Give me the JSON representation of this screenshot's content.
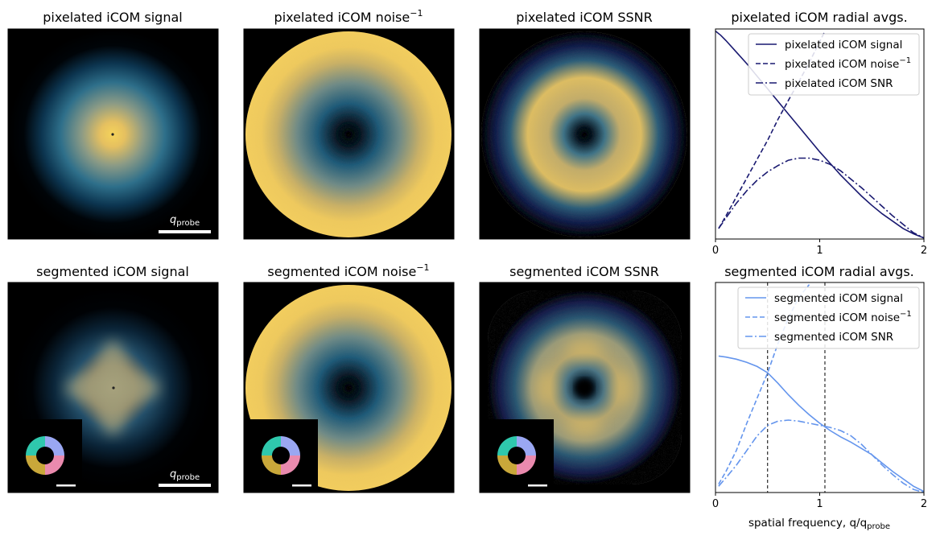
{
  "panels": {
    "row1": [
      {
        "title": "pixelated iCOM signal"
      },
      {
        "title": "pixelated iCOM noise",
        "title_sup": "−1"
      },
      {
        "title": "pixelated iCOM SSNR"
      }
    ],
    "row2": [
      {
        "title": "segmented iCOM signal"
      },
      {
        "title": "segmented iCOM noise",
        "title_sup": "−1"
      },
      {
        "title": "segmented iCOM SSNR"
      }
    ]
  },
  "scalebar": {
    "symbol": "q",
    "subscript": "probe"
  },
  "colors": {
    "pixelated": "#191970",
    "segmented": "#6495ed",
    "detector_segments": [
      "#9aa7f2",
      "#2fc8ad",
      "#c9a83a",
      "#ea8aae"
    ]
  },
  "chart_data": [
    {
      "type": "line",
      "title": "pixelated iCOM radial avgs.",
      "xlim": [
        0,
        2
      ],
      "ylim": [
        0,
        1
      ],
      "xticks": [
        "0",
        "1",
        "2"
      ],
      "grid": false,
      "legend_placement": "top-right",
      "xlabel": "",
      "series": [
        {
          "name": "pixelated iCOM signal",
          "style": "solid",
          "x": [
            0,
            0.05,
            0.1,
            0.2,
            0.3,
            0.4,
            0.5,
            0.6,
            0.7,
            0.8,
            0.9,
            1.0,
            1.1,
            1.2,
            1.3,
            1.4,
            1.5,
            1.6,
            1.7,
            1.8,
            1.9,
            2.0
          ],
          "y": [
            0.99,
            0.97,
            0.945,
            0.89,
            0.835,
            0.775,
            0.715,
            0.655,
            0.595,
            0.535,
            0.475,
            0.415,
            0.36,
            0.305,
            0.255,
            0.205,
            0.16,
            0.12,
            0.085,
            0.05,
            0.025,
            0.005
          ]
        },
        {
          "name": "pixelated iCOM noise",
          "name_sup": "−1",
          "style": "dashed",
          "x": [
            0.03,
            0.1,
            0.2,
            0.3,
            0.4,
            0.5,
            0.6,
            0.7,
            0.8,
            0.9,
            1.0,
            1.05
          ],
          "y": [
            0.05,
            0.11,
            0.2,
            0.29,
            0.38,
            0.47,
            0.57,
            0.66,
            0.75,
            0.84,
            0.94,
            0.99
          ]
        },
        {
          "name": "pixelated iCOM SNR",
          "style": "dashdot",
          "x": [
            0.03,
            0.1,
            0.2,
            0.3,
            0.4,
            0.5,
            0.6,
            0.7,
            0.8,
            0.9,
            1.0,
            1.1,
            1.2,
            1.3,
            1.4,
            1.5,
            1.6,
            1.7,
            1.8,
            1.9,
            2.0
          ],
          "y": [
            0.05,
            0.1,
            0.17,
            0.23,
            0.28,
            0.32,
            0.35,
            0.375,
            0.385,
            0.385,
            0.375,
            0.355,
            0.325,
            0.285,
            0.245,
            0.2,
            0.155,
            0.11,
            0.07,
            0.03,
            0.005
          ]
        }
      ]
    },
    {
      "type": "line",
      "title": "segmented iCOM radial avgs.",
      "xlim": [
        0,
        2
      ],
      "ylim": [
        0,
        1
      ],
      "xticks": [
        "0",
        "1",
        "2"
      ],
      "grid": false,
      "legend_placement": "top-right",
      "xlabel": "spatial frequency, q/q",
      "xlabel_sub": "probe",
      "vlines": [
        0.5,
        1.05
      ],
      "series": [
        {
          "name": "segmented iCOM signal",
          "style": "solid",
          "x": [
            0.03,
            0.1,
            0.2,
            0.3,
            0.4,
            0.5,
            0.6,
            0.7,
            0.8,
            0.9,
            1.0,
            1.1,
            1.2,
            1.3,
            1.4,
            1.5,
            1.6,
            1.7,
            1.8,
            1.9,
            2.0
          ],
          "y": [
            0.65,
            0.645,
            0.635,
            0.62,
            0.6,
            0.57,
            0.52,
            0.465,
            0.415,
            0.37,
            0.33,
            0.295,
            0.265,
            0.24,
            0.21,
            0.18,
            0.14,
            0.1,
            0.065,
            0.03,
            0.005
          ]
        },
        {
          "name": "segmented iCOM noise",
          "name_sup": "−1",
          "style": "dashed",
          "x": [
            0.03,
            0.1,
            0.2,
            0.3,
            0.4,
            0.5,
            0.6,
            0.7,
            0.8,
            0.9
          ],
          "y": [
            0.04,
            0.1,
            0.2,
            0.33,
            0.45,
            0.57,
            0.71,
            0.83,
            0.93,
            0.99
          ]
        },
        {
          "name": "segmented iCOM SNR",
          "style": "dashdot",
          "x": [
            0.03,
            0.1,
            0.2,
            0.3,
            0.4,
            0.5,
            0.6,
            0.7,
            0.8,
            0.9,
            1.0,
            1.1,
            1.2,
            1.3,
            1.4,
            1.5,
            1.6,
            1.7,
            1.8,
            1.9,
            2.0
          ],
          "y": [
            0.03,
            0.07,
            0.13,
            0.2,
            0.27,
            0.32,
            0.34,
            0.345,
            0.34,
            0.33,
            0.32,
            0.31,
            0.295,
            0.27,
            0.23,
            0.18,
            0.13,
            0.085,
            0.045,
            0.015,
            0.0
          ]
        }
      ]
    }
  ]
}
